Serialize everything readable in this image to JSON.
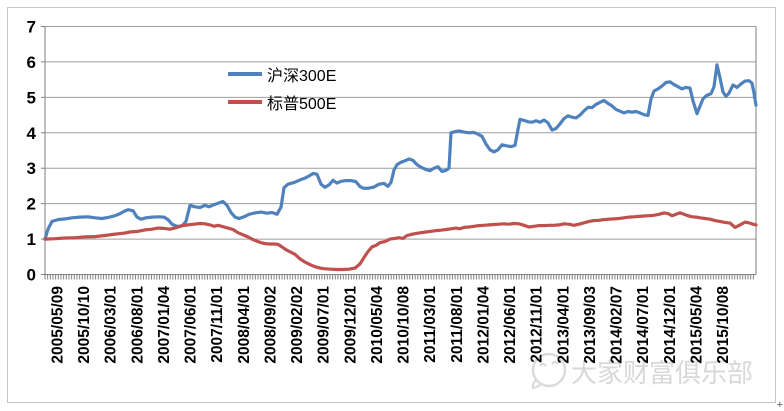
{
  "chart_data": {
    "type": "line",
    "title": "",
    "grid": true,
    "legend_position": "inside-top-left-of-plot",
    "x_axis": {
      "label": "",
      "tick_label_rotation_deg": 90,
      "tick_labels": [
        "2005/05/09",
        "2005/10/10",
        "2006/03/01",
        "2006/08/01",
        "2007/01/04",
        "2007/06/01",
        "2007/11/01",
        "2008/04/01",
        "2008/09/02",
        "2009/02/02",
        "2009/07/01",
        "2009/12/01",
        "2010/05/04",
        "2010/10/08",
        "2011/03/01",
        "2011/08/01",
        "2012/01/04",
        "2012/06/01",
        "2012/11/01",
        "2013/04/01",
        "2013/09/03",
        "2014/02/07",
        "2014/07/01",
        "2014/12/01",
        "2015/05/04",
        "2015/10/08"
      ]
    },
    "y_axis": {
      "label": "",
      "min": 0,
      "max": 7,
      "step": 1,
      "tick_labels": [
        "0",
        "1",
        "2",
        "3",
        "4",
        "5",
        "6",
        "7"
      ]
    },
    "x_encoding": "each point is [plot-x position (45 = 2005/05/09 axis origin, 756 = right edge ~late 2015), value]",
    "series": [
      {
        "name": "沪深300E",
        "color": "#4F81BD",
        "points": [
          [
            45,
            1.0
          ],
          [
            48,
            1.28
          ],
          [
            52,
            1.5
          ],
          [
            58,
            1.55
          ],
          [
            65,
            1.57
          ],
          [
            72,
            1.6
          ],
          [
            80,
            1.62
          ],
          [
            88,
            1.63
          ],
          [
            95,
            1.6
          ],
          [
            102,
            1.58
          ],
          [
            108,
            1.61
          ],
          [
            115,
            1.66
          ],
          [
            120,
            1.72
          ],
          [
            124,
            1.78
          ],
          [
            128,
            1.83
          ],
          [
            133,
            1.8
          ],
          [
            137,
            1.62
          ],
          [
            141,
            1.56
          ],
          [
            146,
            1.6
          ],
          [
            152,
            1.62
          ],
          [
            158,
            1.63
          ],
          [
            164,
            1.62
          ],
          [
            168,
            1.55
          ],
          [
            172,
            1.42
          ],
          [
            177,
            1.36
          ],
          [
            182,
            1.37
          ],
          [
            186,
            1.5
          ],
          [
            190,
            1.95
          ],
          [
            195,
            1.91
          ],
          [
            200,
            1.89
          ],
          [
            205,
            1.95
          ],
          [
            209,
            1.91
          ],
          [
            214,
            1.97
          ],
          [
            219,
            2.02
          ],
          [
            223,
            2.06
          ],
          [
            227,
            1.95
          ],
          [
            231,
            1.75
          ],
          [
            235,
            1.62
          ],
          [
            239,
            1.58
          ],
          [
            244,
            1.63
          ],
          [
            249,
            1.7
          ],
          [
            255,
            1.74
          ],
          [
            261,
            1.76
          ],
          [
            267,
            1.73
          ],
          [
            272,
            1.75
          ],
          [
            277,
            1.7
          ],
          [
            281,
            1.9
          ],
          [
            284,
            2.45
          ],
          [
            288,
            2.55
          ],
          [
            292,
            2.58
          ],
          [
            296,
            2.62
          ],
          [
            300,
            2.67
          ],
          [
            305,
            2.72
          ],
          [
            309,
            2.78
          ],
          [
            313,
            2.85
          ],
          [
            317,
            2.83
          ],
          [
            321,
            2.55
          ],
          [
            325,
            2.46
          ],
          [
            329,
            2.53
          ],
          [
            333,
            2.66
          ],
          [
            337,
            2.58
          ],
          [
            341,
            2.63
          ],
          [
            346,
            2.65
          ],
          [
            351,
            2.65
          ],
          [
            356,
            2.62
          ],
          [
            360,
            2.48
          ],
          [
            364,
            2.43
          ],
          [
            369,
            2.44
          ],
          [
            374,
            2.47
          ],
          [
            379,
            2.55
          ],
          [
            384,
            2.57
          ],
          [
            388,
            2.49
          ],
          [
            391,
            2.6
          ],
          [
            394,
            2.95
          ],
          [
            397,
            3.1
          ],
          [
            401,
            3.17
          ],
          [
            405,
            3.21
          ],
          [
            409,
            3.26
          ],
          [
            413,
            3.22
          ],
          [
            417,
            3.1
          ],
          [
            421,
            3.03
          ],
          [
            426,
            2.96
          ],
          [
            430,
            2.93
          ],
          [
            434,
            3.0
          ],
          [
            438,
            3.04
          ],
          [
            442,
            2.91
          ],
          [
            446,
            2.94
          ],
          [
            449,
            3.0
          ],
          [
            451,
            4.0
          ],
          [
            455,
            4.03
          ],
          [
            459,
            4.05
          ],
          [
            464,
            4.02
          ],
          [
            469,
            4.0
          ],
          [
            474,
            4.01
          ],
          [
            478,
            3.96
          ],
          [
            482,
            3.9
          ],
          [
            486,
            3.68
          ],
          [
            490,
            3.52
          ],
          [
            494,
            3.46
          ],
          [
            498,
            3.52
          ],
          [
            502,
            3.66
          ],
          [
            507,
            3.63
          ],
          [
            511,
            3.61
          ],
          [
            515,
            3.64
          ],
          [
            518,
            4.1
          ],
          [
            520,
            4.38
          ],
          [
            524,
            4.35
          ],
          [
            528,
            4.31
          ],
          [
            532,
            4.3
          ],
          [
            536,
            4.34
          ],
          [
            540,
            4.3
          ],
          [
            544,
            4.36
          ],
          [
            548,
            4.28
          ],
          [
            552,
            4.08
          ],
          [
            556,
            4.12
          ],
          [
            560,
            4.25
          ],
          [
            564,
            4.4
          ],
          [
            568,
            4.48
          ],
          [
            572,
            4.44
          ],
          [
            576,
            4.42
          ],
          [
            580,
            4.5
          ],
          [
            584,
            4.62
          ],
          [
            588,
            4.72
          ],
          [
            592,
            4.71
          ],
          [
            596,
            4.8
          ],
          [
            600,
            4.86
          ],
          [
            604,
            4.91
          ],
          [
            608,
            4.83
          ],
          [
            612,
            4.76
          ],
          [
            616,
            4.66
          ],
          [
            620,
            4.61
          ],
          [
            624,
            4.56
          ],
          [
            628,
            4.6
          ],
          [
            632,
            4.58
          ],
          [
            636,
            4.6
          ],
          [
            640,
            4.56
          ],
          [
            644,
            4.51
          ],
          [
            648,
            4.49
          ],
          [
            651,
            4.95
          ],
          [
            654,
            5.18
          ],
          [
            658,
            5.24
          ],
          [
            662,
            5.32
          ],
          [
            666,
            5.42
          ],
          [
            670,
            5.44
          ],
          [
            674,
            5.36
          ],
          [
            678,
            5.3
          ],
          [
            682,
            5.24
          ],
          [
            686,
            5.28
          ],
          [
            690,
            5.26
          ],
          [
            693,
            4.9
          ],
          [
            697,
            4.54
          ],
          [
            700,
            4.75
          ],
          [
            703,
            4.96
          ],
          [
            707,
            5.06
          ],
          [
            711,
            5.1
          ],
          [
            714,
            5.3
          ],
          [
            717,
            5.92
          ],
          [
            720,
            5.55
          ],
          [
            723,
            5.15
          ],
          [
            726,
            5.03
          ],
          [
            729,
            5.12
          ],
          [
            733,
            5.35
          ],
          [
            737,
            5.28
          ],
          [
            741,
            5.38
          ],
          [
            745,
            5.46
          ],
          [
            749,
            5.47
          ],
          [
            752,
            5.4
          ],
          [
            754,
            5.12
          ],
          [
            756,
            4.78
          ]
        ]
      },
      {
        "name": "标普500E",
        "color": "#C0504D",
        "points": [
          [
            45,
            1.0
          ],
          [
            55,
            1.01
          ],
          [
            65,
            1.03
          ],
          [
            75,
            1.04
          ],
          [
            85,
            1.06
          ],
          [
            95,
            1.07
          ],
          [
            105,
            1.1
          ],
          [
            112,
            1.13
          ],
          [
            118,
            1.15
          ],
          [
            125,
            1.17
          ],
          [
            130,
            1.2
          ],
          [
            138,
            1.22
          ],
          [
            145,
            1.26
          ],
          [
            152,
            1.28
          ],
          [
            158,
            1.31
          ],
          [
            164,
            1.3
          ],
          [
            170,
            1.28
          ],
          [
            176,
            1.32
          ],
          [
            182,
            1.38
          ],
          [
            188,
            1.4
          ],
          [
            194,
            1.42
          ],
          [
            200,
            1.44
          ],
          [
            205,
            1.43
          ],
          [
            210,
            1.4
          ],
          [
            214,
            1.36
          ],
          [
            218,
            1.39
          ],
          [
            223,
            1.35
          ],
          [
            228,
            1.31
          ],
          [
            233,
            1.27
          ],
          [
            238,
            1.18
          ],
          [
            243,
            1.12
          ],
          [
            248,
            1.06
          ],
          [
            252,
            1.0
          ],
          [
            257,
            0.94
          ],
          [
            262,
            0.89
          ],
          [
            266,
            0.87
          ],
          [
            270,
            0.86
          ],
          [
            274,
            0.86
          ],
          [
            278,
            0.85
          ],
          [
            282,
            0.78
          ],
          [
            286,
            0.7
          ],
          [
            290,
            0.64
          ],
          [
            295,
            0.57
          ],
          [
            300,
            0.44
          ],
          [
            305,
            0.35
          ],
          [
            310,
            0.28
          ],
          [
            315,
            0.22
          ],
          [
            320,
            0.18
          ],
          [
            325,
            0.16
          ],
          [
            331,
            0.15
          ],
          [
            337,
            0.14
          ],
          [
            343,
            0.14
          ],
          [
            349,
            0.15
          ],
          [
            355,
            0.18
          ],
          [
            360,
            0.3
          ],
          [
            364,
            0.48
          ],
          [
            368,
            0.65
          ],
          [
            372,
            0.78
          ],
          [
            376,
            0.82
          ],
          [
            380,
            0.9
          ],
          [
            385,
            0.93
          ],
          [
            390,
            1.0
          ],
          [
            395,
            1.02
          ],
          [
            399,
            1.04
          ],
          [
            403,
            1.02
          ],
          [
            407,
            1.1
          ],
          [
            411,
            1.13
          ],
          [
            416,
            1.16
          ],
          [
            421,
            1.18
          ],
          [
            426,
            1.2
          ],
          [
            431,
            1.22
          ],
          [
            436,
            1.24
          ],
          [
            441,
            1.25
          ],
          [
            446,
            1.27
          ],
          [
            451,
            1.29
          ],
          [
            456,
            1.31
          ],
          [
            460,
            1.29
          ],
          [
            464,
            1.33
          ],
          [
            469,
            1.34
          ],
          [
            474,
            1.36
          ],
          [
            479,
            1.38
          ],
          [
            484,
            1.39
          ],
          [
            489,
            1.4
          ],
          [
            494,
            1.41
          ],
          [
            499,
            1.42
          ],
          [
            504,
            1.43
          ],
          [
            509,
            1.42
          ],
          [
            514,
            1.44
          ],
          [
            519,
            1.43
          ],
          [
            524,
            1.39
          ],
          [
            529,
            1.34
          ],
          [
            534,
            1.36
          ],
          [
            539,
            1.38
          ],
          [
            544,
            1.38
          ],
          [
            549,
            1.39
          ],
          [
            554,
            1.39
          ],
          [
            559,
            1.4
          ],
          [
            564,
            1.43
          ],
          [
            569,
            1.42
          ],
          [
            574,
            1.39
          ],
          [
            579,
            1.42
          ],
          [
            584,
            1.46
          ],
          [
            589,
            1.5
          ],
          [
            594,
            1.52
          ],
          [
            599,
            1.53
          ],
          [
            604,
            1.55
          ],
          [
            609,
            1.56
          ],
          [
            614,
            1.57
          ],
          [
            619,
            1.58
          ],
          [
            624,
            1.6
          ],
          [
            629,
            1.62
          ],
          [
            634,
            1.63
          ],
          [
            639,
            1.64
          ],
          [
            644,
            1.65
          ],
          [
            649,
            1.66
          ],
          [
            654,
            1.67
          ],
          [
            659,
            1.7
          ],
          [
            664,
            1.74
          ],
          [
            668,
            1.72
          ],
          [
            672,
            1.66
          ],
          [
            676,
            1.7
          ],
          [
            680,
            1.74
          ],
          [
            684,
            1.7
          ],
          [
            688,
            1.66
          ],
          [
            692,
            1.63
          ],
          [
            696,
            1.62
          ],
          [
            700,
            1.6
          ],
          [
            705,
            1.58
          ],
          [
            710,
            1.56
          ],
          [
            715,
            1.52
          ],
          [
            720,
            1.5
          ],
          [
            725,
            1.47
          ],
          [
            730,
            1.45
          ],
          [
            735,
            1.33
          ],
          [
            740,
            1.4
          ],
          [
            745,
            1.48
          ],
          [
            750,
            1.45
          ],
          [
            753,
            1.42
          ],
          [
            756,
            1.4
          ]
        ]
      }
    ],
    "colors": {
      "gridline": "#9d9d9d",
      "axis": "#808080",
      "tick_text": "#000000",
      "frame_border": "#c3c3c3",
      "watermark": "#b9b9b9"
    }
  },
  "watermark": {
    "text": "大家财富俱乐部"
  },
  "corner_plus": "+"
}
